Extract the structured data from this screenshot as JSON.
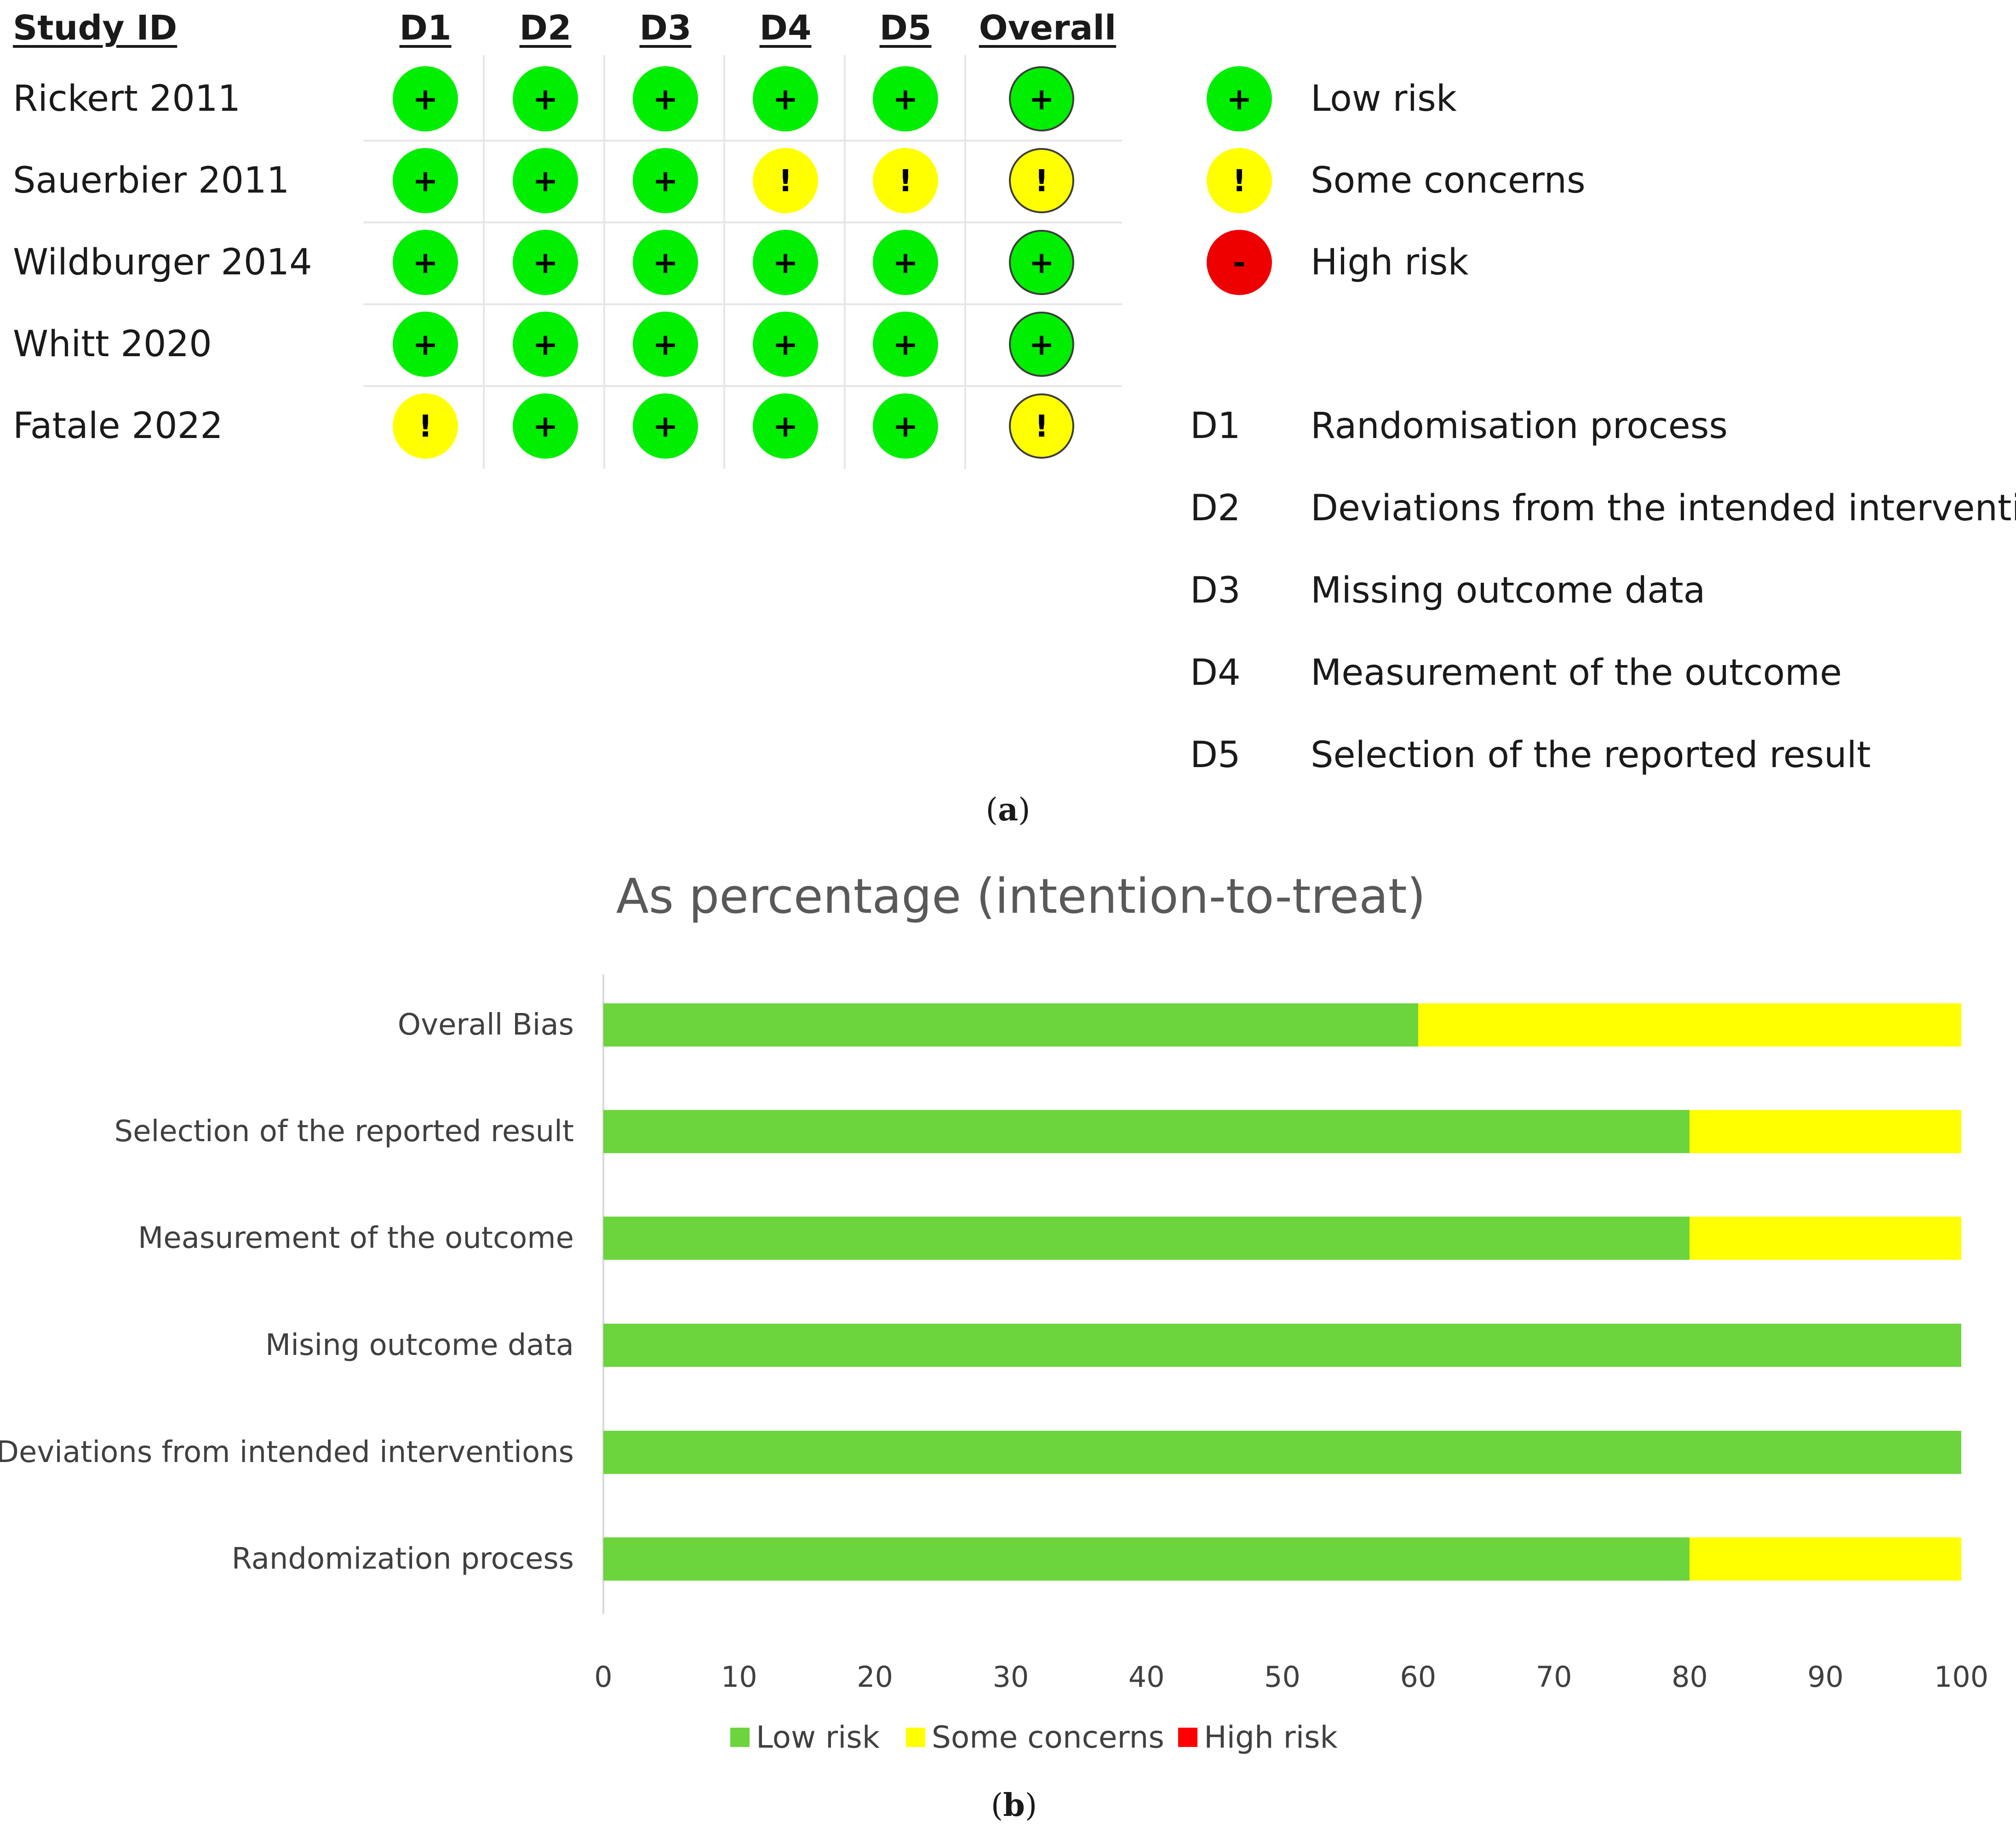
{
  "panel_a": {
    "header_study": "Study ID",
    "domains": [
      "D1",
      "D2",
      "D3",
      "D4",
      "D5",
      "Overall"
    ],
    "studies": [
      {
        "name": "Rickert 2011",
        "judgements": [
          "+",
          "+",
          "+",
          "+",
          "+",
          "+"
        ],
        "levels": [
          "low",
          "low",
          "low",
          "low",
          "low",
          "low"
        ]
      },
      {
        "name": "Sauerbier 2011",
        "judgements": [
          "+",
          "+",
          "+",
          "!",
          "!",
          "!"
        ],
        "levels": [
          "low",
          "low",
          "low",
          "some",
          "some",
          "some"
        ]
      },
      {
        "name": "Wildburger 2014",
        "judgements": [
          "+",
          "+",
          "+",
          "+",
          "+",
          "+"
        ],
        "levels": [
          "low",
          "low",
          "low",
          "low",
          "low",
          "low"
        ]
      },
      {
        "name": "Whitt 2020",
        "judgements": [
          "+",
          "+",
          "+",
          "+",
          "+",
          "+"
        ],
        "levels": [
          "low",
          "low",
          "low",
          "low",
          "low",
          "low"
        ]
      },
      {
        "name": "Fatale 2022",
        "judgements": [
          "!",
          "+",
          "+",
          "+",
          "+",
          "!"
        ],
        "levels": [
          "some",
          "low",
          "low",
          "low",
          "low",
          "some"
        ]
      }
    ],
    "risk_legend": [
      {
        "symbol": "+",
        "label": "Low risk",
        "color": "#00ee00"
      },
      {
        "symbol": "!",
        "label": "Some concerns",
        "color": "#ffff00"
      },
      {
        "symbol": "-",
        "label": "High risk",
        "color": "#ee0000"
      }
    ],
    "domain_legend": [
      {
        "code": "D1",
        "label": "Randomisation process"
      },
      {
        "code": "D2",
        "label": "Deviations from the intended interventions"
      },
      {
        "code": "D3",
        "label": "Missing outcome data"
      },
      {
        "code": "D4",
        "label": "Measurement of the outcome"
      },
      {
        "code": "D5",
        "label": "Selection of the reported result"
      }
    ],
    "caption_letter": "a"
  },
  "chart_data": {
    "type": "bar",
    "orientation": "horizontal",
    "stacked": true,
    "title": "As percentage (intention-to-treat)",
    "categories": [
      "Overall Bias",
      "Selection of the reported result",
      "Measurement of the outcome",
      "Mising outcome data",
      "Deviations from intended interventions",
      "Randomization process"
    ],
    "series": [
      {
        "name": "Low risk",
        "color": "#6cd43c",
        "values": [
          60,
          80,
          80,
          100,
          100,
          80
        ]
      },
      {
        "name": "Some concerns",
        "color": "#ffff00",
        "values": [
          40,
          20,
          20,
          0,
          0,
          20
        ]
      },
      {
        "name": "High risk",
        "color": "#ff0000",
        "values": [
          0,
          0,
          0,
          0,
          0,
          0
        ]
      }
    ],
    "xlim": [
      0,
      100
    ],
    "xticks": [
      "0",
      "10",
      "20",
      "30",
      "40",
      "50",
      "60",
      "70",
      "80",
      "90",
      "100"
    ],
    "legend_position": "bottom",
    "caption_letter": "b"
  },
  "colors": {
    "low": "#00ee00",
    "some": "#ffff00",
    "high": "#ee0000"
  }
}
